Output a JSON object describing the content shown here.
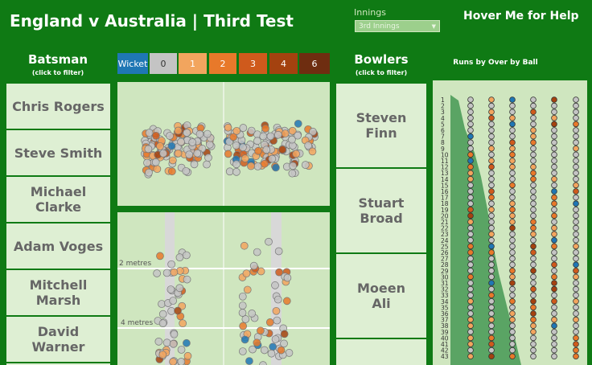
{
  "header": {
    "title": "England v Australia | Third Test",
    "innings_label": "Innings",
    "innings_value": "3rd Innings",
    "help": "Hover Me for Help"
  },
  "batsman": {
    "title": "Batsman",
    "subtitle": "(click to filter)",
    "names": [
      "Chris Rogers",
      "Steve Smith",
      "Michael Clarke",
      "Adam Voges",
      "Mitchell Marsh",
      "David Warner"
    ]
  },
  "legend": {
    "items": [
      {
        "label": "Wicket",
        "color": "#1f77b4"
      },
      {
        "label": "0",
        "color": "#c4c4c4"
      },
      {
        "label": "1",
        "color": "#f2a55e"
      },
      {
        "label": "2",
        "color": "#e8792a"
      },
      {
        "label": "3",
        "color": "#cf5a1c"
      },
      {
        "label": "4",
        "color": "#a4420f"
      },
      {
        "label": "6",
        "color": "#6e2d10"
      }
    ]
  },
  "pitch": {
    "labels": [
      "2 metres",
      "4 metres"
    ]
  },
  "bowlers": {
    "title": "Bowlers",
    "subtitle": "(click to filter)",
    "names": [
      "Steven Finn",
      "Stuart Broad",
      "Moeen Ali"
    ]
  },
  "runs": {
    "title": "Runs by Over by Ball",
    "overs": [
      1,
      2,
      3,
      4,
      5,
      6,
      7,
      8,
      9,
      10,
      11,
      12,
      13,
      14,
      15,
      16,
      17,
      18,
      19,
      20,
      21,
      22,
      23,
      24,
      25,
      26,
      27,
      28,
      29,
      30,
      31,
      32,
      33,
      34,
      35,
      36,
      37,
      38,
      39,
      40,
      41,
      42,
      43
    ]
  }
}
